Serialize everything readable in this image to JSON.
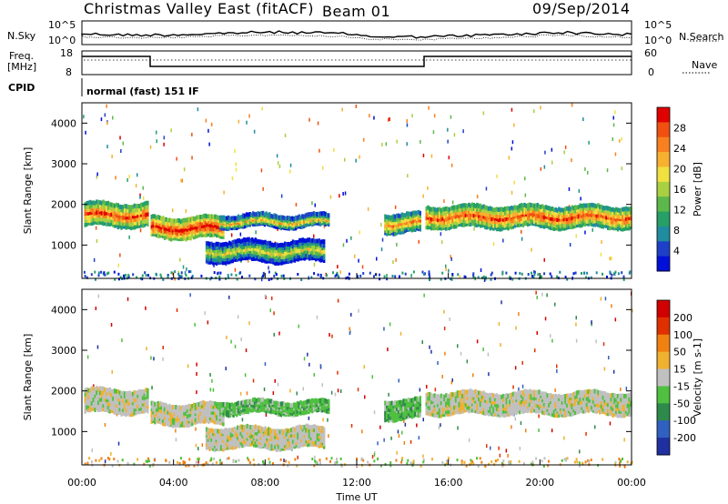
{
  "header": {
    "station": "Christmas Valley East (fitACF)",
    "beam": "Beam 01",
    "date": "09/Sep/2014"
  },
  "panel_labels": {
    "nsky": "N.Sky",
    "nsearch": "N.Search",
    "freq_line1": "Freq.",
    "freq_line2": "[MHz]",
    "nave": "Nave",
    "cpid": "CPID",
    "cpid_text": "normal (fast) 151 IF"
  },
  "axes": {
    "noise_left_ticks": [
      "10^5",
      "10^0"
    ],
    "noise_right_ticks": [
      "10^5",
      "10^0"
    ],
    "freq_left_ticks": [
      "18",
      "8"
    ],
    "nave_right_ticks": [
      "60",
      "0"
    ],
    "time_ticks": [
      "00:00",
      "04:00",
      "08:00",
      "12:00",
      "16:00",
      "20:00",
      "00:00"
    ],
    "xlabel": "Time UT"
  },
  "chart_data": [
    {
      "type": "heatmap",
      "ylabel": "Slant Range [km]",
      "yticks": [
        "4000",
        "3000",
        "2000",
        "1000"
      ],
      "ylim": [
        180,
        4500
      ],
      "xlim_hours": [
        0,
        24
      ],
      "colorbar_label": "Power [dB]",
      "colorbar_ticks": [
        "28",
        "24",
        "20",
        "16",
        "12",
        "8",
        "4"
      ],
      "colorbar_colors": [
        "#0010d8",
        "#1e40c8",
        "#1f8ca0",
        "#26a066",
        "#5cb84a",
        "#a8d040",
        "#f0e040",
        "#f8b030",
        "#f88020",
        "#f05010",
        "#e00000"
      ],
      "features": [
        {
          "t0": 0.1,
          "t1": 2.9,
          "r": 1800,
          "w": 250,
          "level": 9
        },
        {
          "t0": 3.0,
          "t1": 6.2,
          "r": 1480,
          "w": 220,
          "level": 10
        },
        {
          "t0": 6.0,
          "t1": 10.8,
          "r": 1650,
          "w": 120,
          "level": 7
        },
        {
          "t0": 5.4,
          "t1": 10.6,
          "r": 900,
          "w": 220,
          "level": 6
        },
        {
          "t0": 13.2,
          "t1": 14.8,
          "r": 1600,
          "w": 200,
          "level": 8
        },
        {
          "t0": 15.0,
          "t1": 24.0,
          "r": 1750,
          "w": 230,
          "level": 9
        }
      ]
    },
    {
      "type": "heatmap",
      "ylabel": "Slant Range [km]",
      "yticks": [
        "4000",
        "3000",
        "2000",
        "1000"
      ],
      "ylim": [
        180,
        4500
      ],
      "xlim_hours": [
        0,
        24
      ],
      "colorbar_label": "Velocity [m s-1]",
      "colorbar_ticks": [
        "200",
        "100",
        "50",
        "15",
        "-15",
        "-50",
        "-100",
        "-200"
      ],
      "colorbar_colors": [
        "#2030a0",
        "#3060c0",
        "#2e8a4a",
        "#50c040",
        "#c0c0c0",
        "#f0b030",
        "#f08010",
        "#e03000",
        "#d00000"
      ],
      "features": [
        {
          "t0": 0.1,
          "t1": 2.9,
          "r": 1800,
          "w": 250,
          "level": 4
        },
        {
          "t0": 3.0,
          "t1": 6.2,
          "r": 1480,
          "w": 220,
          "level": 4
        },
        {
          "t0": 6.0,
          "t1": 10.8,
          "r": 1650,
          "w": 120,
          "level": 3
        },
        {
          "t0": 5.4,
          "t1": 10.6,
          "r": 900,
          "w": 220,
          "level": 4
        },
        {
          "t0": 13.2,
          "t1": 14.8,
          "r": 1600,
          "w": 200,
          "level": 3
        },
        {
          "t0": 15.0,
          "t1": 24.0,
          "r": 1750,
          "w": 230,
          "level": 4
        }
      ]
    }
  ]
}
